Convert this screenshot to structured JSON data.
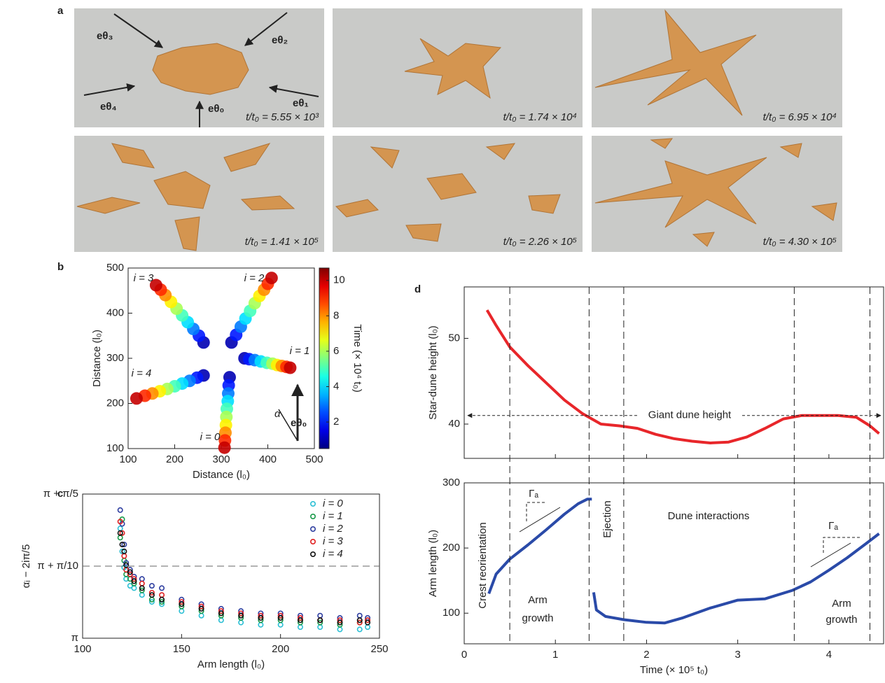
{
  "panel_labels": [
    "a",
    "b",
    "c",
    "d"
  ],
  "panel_a": {
    "frames": [
      "t/t₀ = 5.55 × 10³",
      "t/t₀ = 1.74 × 10⁴",
      "t/t₀ = 6.95 × 10⁴",
      "t/t₀ = 1.41 × 10⁵",
      "t/t₀ = 2.26 × 10⁵",
      "t/t₀ = 4.30 × 10⁵"
    ],
    "arrow_labels": [
      "eθ₃",
      "eθ₂",
      "eθ₁",
      "eθ₄",
      "eθ₀"
    ]
  },
  "chart_data": [
    {
      "type": "scatter",
      "xlabel": "Distance (l₀)",
      "ylabel": "Distance (l₀)",
      "xlim": [
        100,
        500
      ],
      "ylim": [
        100,
        500
      ],
      "xticks": [
        100,
        200,
        300,
        400,
        500
      ],
      "yticks": [
        100,
        200,
        300,
        400,
        500
      ],
      "colorbar": {
        "label": "Time (× 10⁴ t₀)",
        "lim": [
          0.5,
          10.7
        ],
        "ticks": [
          2,
          4,
          6,
          8,
          10
        ],
        "colormap": "jet"
      },
      "annotations": [
        "α",
        "eθ₀"
      ],
      "series": [
        {
          "name": "i = 0",
          "x": [
            318,
            316,
            315,
            314,
            312,
            311,
            310,
            309,
            308,
            307
          ],
          "y": [
            258,
            240,
            222,
            205,
            188,
            170,
            152,
            135,
            118,
            102
          ],
          "c": [
            1,
            2,
            3,
            4,
            5,
            6,
            7,
            8,
            9,
            10
          ]
        },
        {
          "name": "i = 1",
          "x": [
            350,
            360,
            372,
            385,
            398,
            410,
            420,
            430,
            440,
            448
          ],
          "y": [
            300,
            298,
            296,
            293,
            290,
            288,
            285,
            283,
            281,
            279
          ],
          "c": [
            1,
            2,
            3,
            4,
            5,
            6,
            7,
            8,
            9,
            10
          ]
        },
        {
          "name": "i = 2",
          "x": [
            322,
            332,
            342,
            352,
            362,
            372,
            382,
            392,
            400,
            408
          ],
          "y": [
            335,
            352,
            370,
            388,
            405,
            422,
            438,
            452,
            465,
            478
          ],
          "c": [
            1,
            2,
            3,
            4,
            5,
            6,
            7,
            8,
            9,
            10
          ]
        },
        {
          "name": "i = 3",
          "x": [
            262,
            252,
            240,
            228,
            216,
            204,
            192,
            180,
            170,
            160
          ],
          "y": [
            335,
            350,
            365,
            380,
            395,
            410,
            425,
            440,
            452,
            462
          ],
          "c": [
            1,
            2,
            3,
            4,
            5,
            6,
            7,
            8,
            9,
            10
          ]
        },
        {
          "name": "i = 4",
          "x": [
            262,
            248,
            232,
            216,
            200,
            184,
            168,
            152,
            136,
            118
          ],
          "y": [
            262,
            257,
            250,
            244,
            238,
            232,
            227,
            222,
            217,
            211
          ],
          "c": [
            1,
            2,
            3,
            4,
            5,
            6,
            7,
            8,
            9,
            10
          ]
        }
      ]
    },
    {
      "type": "scatter",
      "xlabel": "Arm length (l₀)",
      "ylabel": "αᵢ − 2iπ/5",
      "xlim": [
        100,
        250
      ],
      "ylim": [
        3.14159,
        3.76991
      ],
      "xticks": [
        100,
        150,
        200,
        250
      ],
      "yticks": [
        {
          "value": 3.14159,
          "label": "π"
        },
        {
          "value": 3.45575,
          "label": "π + π/10"
        },
        {
          "value": 3.76991,
          "label": "π + π/5"
        }
      ],
      "hline": 3.45575,
      "legend": "upper right",
      "x": [
        119,
        120,
        121,
        122,
        124,
        126,
        130,
        135,
        140,
        150,
        160,
        170,
        180,
        190,
        200,
        210,
        220,
        230,
        240,
        244
      ],
      "series": [
        {
          "name": "i = 0",
          "color": "#2bbfd4",
          "values": [
            3.62,
            3.52,
            3.45,
            3.4,
            3.37,
            3.36,
            3.33,
            3.3,
            3.29,
            3.26,
            3.24,
            3.22,
            3.21,
            3.2,
            3.2,
            3.19,
            3.19,
            3.18,
            3.18,
            3.19
          ]
        },
        {
          "name": "i = 1",
          "color": "#1a9a4a",
          "values": [
            3.58,
            3.66,
            3.48,
            3.42,
            3.4,
            3.38,
            3.35,
            3.31,
            3.3,
            3.28,
            3.26,
            3.24,
            3.23,
            3.22,
            3.22,
            3.21,
            3.21,
            3.2,
            3.21,
            3.22
          ]
        },
        {
          "name": "i = 2",
          "color": "#2f3fa0",
          "values": [
            3.7,
            3.64,
            3.55,
            3.47,
            3.44,
            3.41,
            3.4,
            3.37,
            3.36,
            3.31,
            3.29,
            3.27,
            3.26,
            3.25,
            3.25,
            3.24,
            3.24,
            3.23,
            3.24,
            3.23
          ]
        },
        {
          "name": "i = 3",
          "color": "#e02020",
          "values": [
            3.65,
            3.6,
            3.5,
            3.44,
            3.42,
            3.4,
            3.38,
            3.34,
            3.33,
            3.3,
            3.28,
            3.26,
            3.25,
            3.24,
            3.24,
            3.23,
            3.22,
            3.22,
            3.21,
            3.22
          ]
        },
        {
          "name": "i = 4",
          "color": "#111111",
          "values": [
            3.6,
            3.55,
            3.52,
            3.46,
            3.43,
            3.39,
            3.36,
            3.33,
            3.31,
            3.29,
            3.27,
            3.25,
            3.24,
            3.23,
            3.23,
            3.22,
            3.22,
            3.21,
            3.22,
            3.21
          ]
        }
      ]
    },
    {
      "type": "line",
      "ylabel": "Star-dune height (l₀)",
      "xlim": [
        0,
        4.6
      ],
      "ylim": [
        36,
        56
      ],
      "yticks": [
        40,
        50
      ],
      "hline": {
        "value": 41,
        "label": "Giant dune height"
      },
      "series": [
        {
          "color": "#e8262a",
          "x": [
            0.25,
            0.35,
            0.5,
            0.7,
            0.9,
            1.1,
            1.3,
            1.5,
            1.7,
            1.9,
            2.1,
            2.3,
            2.5,
            2.7,
            2.9,
            3.1,
            3.3,
            3.5,
            3.7,
            3.9,
            4.1,
            4.3,
            4.45,
            4.55
          ],
          "values": [
            53.3,
            51.5,
            49,
            46.8,
            44.8,
            42.8,
            41.2,
            40.0,
            39.8,
            39.5,
            38.8,
            38.3,
            38.0,
            37.8,
            37.9,
            38.5,
            39.5,
            40.6,
            41.0,
            41.0,
            41.0,
            40.8,
            39.8,
            38.9
          ]
        }
      ]
    },
    {
      "type": "line",
      "xlabel": "Time (× 10⁵ t₀)",
      "ylabel": "Arm length (l₀)",
      "xlim": [
        0,
        4.6
      ],
      "ylim": [
        53,
        300
      ],
      "xticks": [
        0,
        1,
        2,
        3,
        4
      ],
      "yticks": [
        100,
        200,
        300
      ],
      "vlines": [
        0.5,
        1.37,
        1.75,
        3.62,
        4.45
      ],
      "annotations": [
        "Crest reorientation",
        "Arm",
        "growth",
        "Ejection",
        "Dune interactions",
        "Arm",
        "growth",
        "Γₐ",
        "Γₐ"
      ],
      "series": [
        {
          "color": "#2a4aa8",
          "x": [
            0.27,
            0.35,
            0.5,
            0.7,
            0.9,
            1.1,
            1.25,
            1.35,
            1.4,
            null,
            1.42,
            1.45,
            1.55,
            1.75,
            2.0,
            2.2,
            2.4,
            2.7,
            3.0,
            3.3,
            3.6,
            3.8,
            4.0,
            4.2,
            4.4,
            4.55
          ],
          "values": [
            130,
            160,
            183,
            205,
            228,
            252,
            268,
            275,
            275,
            null,
            132,
            105,
            95,
            90,
            86,
            85,
            93,
            108,
            120,
            122,
            135,
            148,
            166,
            185,
            206,
            222
          ]
        }
      ]
    }
  ]
}
